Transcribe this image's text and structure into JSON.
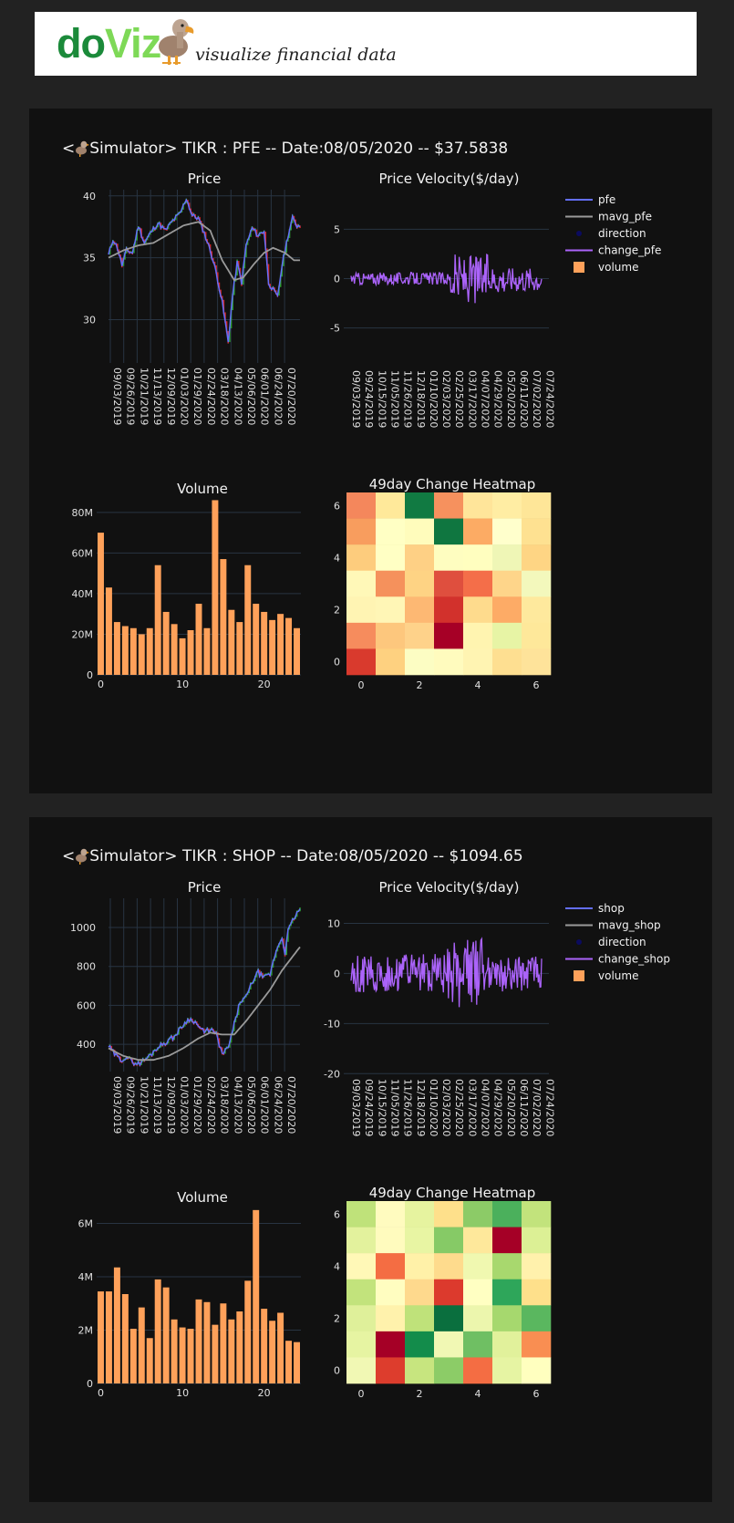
{
  "header": {
    "logo_do": "do",
    "logo_viz": "Viz",
    "tagline": "visualize financial data"
  },
  "colors": {
    "price": "#636efa",
    "mavg": "#9a9a9a",
    "change": "#ab63fa",
    "volume": "#ffa15a",
    "up": "#2ca02c",
    "down": "#d62728",
    "bg": "#111111",
    "grid": "#283442"
  },
  "panels": [
    {
      "title_prefix": "<",
      "title_text": "Simulator> TIKR : PFE -- Date:08/05/2020 -- $37.5838",
      "legend": [
        "pfe",
        "mavg_pfe",
        "direction",
        "change_pfe",
        "volume"
      ],
      "chart_data": [
        {
          "type": "line",
          "title": "Price",
          "series": [
            {
              "name": "pfe"
            },
            {
              "name": "mavg_pfe"
            }
          ],
          "x_ticks": [
            "09/03/2019",
            "09/26/2019",
            "10/21/2019",
            "11/13/2019",
            "12/09/2019",
            "01/03/2020",
            "01/29/2020",
            "02/24/2020",
            "03/18/2020",
            "04/13/2020",
            "05/06/2020",
            "06/01/2020",
            "06/24/2020",
            "07/20/2020"
          ],
          "y_ticks": [
            30,
            35,
            40
          ],
          "ylim": [
            26.5,
            40.5
          ],
          "price_keys": [
            [
              0,
              35.2
            ],
            [
              3,
              36.5
            ],
            [
              6,
              35.8
            ],
            [
              9,
              34.4
            ],
            [
              12,
              35.6
            ],
            [
              16,
              35.4
            ],
            [
              20,
              37.6
            ],
            [
              24,
              36.2
            ],
            [
              28,
              37.0
            ],
            [
              33,
              37.8
            ],
            [
              38,
              37.2
            ],
            [
              43,
              38.0
            ],
            [
              48,
              38.6
            ],
            [
              52,
              39.8
            ],
            [
              56,
              38.4
            ],
            [
              60,
              38.2
            ],
            [
              64,
              37.0
            ],
            [
              68,
              35.6
            ],
            [
              72,
              33.8
            ],
            [
              76,
              31.4
            ],
            [
              80,
              28.2
            ],
            [
              83,
              32.0
            ],
            [
              86,
              34.6
            ],
            [
              89,
              33.0
            ],
            [
              92,
              36.0
            ],
            [
              96,
              37.4
            ],
            [
              100,
              36.8
            ],
            [
              104,
              37.2
            ],
            [
              107,
              33.0
            ],
            [
              110,
              32.4
            ],
            [
              113,
              31.8
            ],
            [
              116,
              34.4
            ],
            [
              120,
              36.8
            ],
            [
              123,
              38.2
            ],
            [
              126,
              37.6
            ]
          ],
          "mavg_keys": [
            [
              0,
              35.0
            ],
            [
              10,
              35.6
            ],
            [
              20,
              36.0
            ],
            [
              30,
              36.2
            ],
            [
              40,
              36.9
            ],
            [
              50,
              37.6
            ],
            [
              60,
              37.9
            ],
            [
              68,
              37.2
            ],
            [
              76,
              34.8
            ],
            [
              84,
              33.2
            ],
            [
              90,
              33.4
            ],
            [
              98,
              34.6
            ],
            [
              104,
              35.4
            ],
            [
              110,
              35.8
            ],
            [
              118,
              35.4
            ],
            [
              124,
              34.8
            ],
            [
              128,
              34.8
            ]
          ]
        },
        {
          "type": "line",
          "title": "Price Velocity($/day)",
          "series": [
            {
              "name": "change_pfe"
            }
          ],
          "x_ticks": [
            "09/03/2019",
            "09/24/2019",
            "10/15/2019",
            "11/05/2019",
            "11/26/2019",
            "12/18/2019",
            "01/10/2020",
            "02/03/2020",
            "02/25/2020",
            "03/17/2020",
            "04/07/2020",
            "04/29/2020",
            "05/20/2020",
            "06/11/2020",
            "07/02/2020",
            "07/24/2020"
          ],
          "y_ticks": [
            -5,
            0,
            5
          ],
          "ylim": [
            -9,
            9
          ]
        },
        {
          "type": "bar",
          "title": "Volume",
          "series": [
            {
              "name": "volume"
            }
          ],
          "values": [
            70,
            43,
            26,
            24,
            23,
            20,
            23,
            54,
            31,
            25,
            18,
            22,
            35,
            23,
            86,
            57,
            32,
            26,
            54,
            35,
            31,
            27,
            30,
            28,
            23
          ],
          "y_ticks": [
            "0",
            "20M",
            "40M",
            "60M",
            "80M"
          ],
          "y_tick_values": [
            0,
            20,
            40,
            60,
            80
          ],
          "ylim": [
            0,
            88
          ],
          "x_ticks": [
            "0",
            "10",
            "20"
          ],
          "x_tick_values": [
            0,
            10,
            20
          ]
        },
        {
          "type": "heatmap",
          "title": "49day Change Heatmap",
          "x_ticks": [
            "0",
            "2",
            "4",
            "6"
          ],
          "y_ticks": [
            "0",
            "2",
            "4",
            "6"
          ],
          "rows_top_to_bottom": [
            [
              "#f4875c",
              "#ffe99a",
              "#117a42",
              "#f6915e",
              "#ffe59a",
              "#ffeda3",
              "#fee698"
            ],
            [
              "#f89d5e",
              "#ffffc4",
              "#fffcbc",
              "#0f7640",
              "#fcab64",
              "#ffffcc",
              "#fee191"
            ],
            [
              "#fdcc7d",
              "#ffffc4",
              "#fed085",
              "#fefdc0",
              "#fffebf",
              "#eff6b6",
              "#fed584"
            ],
            [
              "#fff8b8",
              "#f5915c",
              "#fed384",
              "#df4f3e",
              "#f46e49",
              "#fed58a",
              "#f3f8bc"
            ],
            [
              "#fff4b3",
              "#fff6b6",
              "#fdb873",
              "#d2312c",
              "#fedb8d",
              "#fdab66",
              "#fee99d"
            ],
            [
              "#f68c5d",
              "#fdc77d",
              "#fed28a",
              "#a60026",
              "#fff4b0",
              "#e7f4a5",
              "#fee89a"
            ],
            [
              "#d93a2d",
              "#fed180",
              "#fcfdc3",
              "#fffbbe",
              "#fff4b2",
              "#fedf91",
              "#fee39a"
            ]
          ]
        }
      ]
    },
    {
      "title_prefix": "<",
      "title_text": "Simulator> TIKR : SHOP -- Date:08/05/2020 -- $1094.65",
      "legend": [
        "shop",
        "mavg_shop",
        "direction",
        "change_shop",
        "volume"
      ],
      "chart_data": [
        {
          "type": "line",
          "title": "Price",
          "series": [
            {
              "name": "shop"
            },
            {
              "name": "mavg_shop"
            }
          ],
          "x_ticks": [
            "09/03/2019",
            "09/26/2019",
            "10/21/2019",
            "11/13/2019",
            "12/09/2019",
            "01/03/2020",
            "01/29/2020",
            "02/24/2020",
            "03/18/2020",
            "04/13/2020",
            "05/06/2020",
            "06/01/2020",
            "06/24/2020",
            "07/20/2020"
          ],
          "y_ticks": [
            400,
            600,
            800,
            1000
          ],
          "ylim": [
            260,
            1150
          ],
          "price_keys": [
            [
              0,
              390
            ],
            [
              4,
              350
            ],
            [
              8,
              320
            ],
            [
              12,
              335
            ],
            [
              16,
              310
            ],
            [
              20,
              300
            ],
            [
              24,
              320
            ],
            [
              28,
              345
            ],
            [
              32,
              380
            ],
            [
              36,
              400
            ],
            [
              40,
              420
            ],
            [
              44,
              440
            ],
            [
              48,
              480
            ],
            [
              52,
              520
            ],
            [
              56,
              530
            ],
            [
              60,
              495
            ],
            [
              64,
              460
            ],
            [
              68,
              480
            ],
            [
              72,
              450
            ],
            [
              76,
              350
            ],
            [
              80,
              380
            ],
            [
              84,
              500
            ],
            [
              88,
              620
            ],
            [
              92,
              640
            ],
            [
              96,
              720
            ],
            [
              100,
              770
            ],
            [
              104,
              740
            ],
            [
              108,
              760
            ],
            [
              112,
              880
            ],
            [
              116,
              950
            ],
            [
              118,
              870
            ],
            [
              120,
              980
            ],
            [
              124,
              1050
            ],
            [
              128,
              1095
            ]
          ],
          "mavg_keys": [
            [
              0,
              380
            ],
            [
              10,
              340
            ],
            [
              20,
              320
            ],
            [
              30,
              320
            ],
            [
              40,
              340
            ],
            [
              50,
              380
            ],
            [
              60,
              430
            ],
            [
              68,
              460
            ],
            [
              76,
              450
            ],
            [
              84,
              450
            ],
            [
              92,
              520
            ],
            [
              100,
              600
            ],
            [
              108,
              680
            ],
            [
              116,
              780
            ],
            [
              122,
              840
            ],
            [
              128,
              900
            ]
          ]
        },
        {
          "type": "line",
          "title": "Price Velocity($/day)",
          "series": [
            {
              "name": "change_shop"
            }
          ],
          "x_ticks": [
            "09/03/2019",
            "09/24/2019",
            "10/15/2019",
            "11/05/2019",
            "11/26/2019",
            "12/18/2019",
            "01/10/2020",
            "02/03/2020",
            "02/25/2020",
            "03/17/2020",
            "04/07/2020",
            "04/29/2020",
            "05/20/2020",
            "06/11/2020",
            "07/02/2020",
            "07/24/2020"
          ],
          "y_ticks": [
            -20,
            -10,
            0,
            10
          ],
          "ylim": [
            -20.5,
            15
          ]
        },
        {
          "type": "bar",
          "title": "Volume",
          "series": [
            {
              "name": "volume"
            }
          ],
          "values": [
            3.45,
            3.45,
            4.35,
            3.35,
            2.05,
            2.85,
            1.7,
            3.9,
            3.6,
            2.4,
            2.1,
            2.05,
            3.15,
            3.05,
            2.2,
            3.0,
            2.4,
            2.7,
            3.85,
            6.5,
            2.8,
            2.35,
            2.65,
            1.6,
            1.55
          ],
          "y_ticks": [
            "0",
            "2M",
            "4M",
            "6M"
          ],
          "y_tick_values": [
            0,
            2,
            4,
            6
          ],
          "ylim": [
            0,
            6.7
          ],
          "x_ticks": [
            "0",
            "10",
            "20"
          ],
          "x_tick_values": [
            0,
            10,
            20
          ]
        },
        {
          "type": "heatmap",
          "title": "49day Change Heatmap",
          "x_ticks": [
            "0",
            "2",
            "4",
            "6"
          ],
          "y_ticks": [
            "0",
            "2",
            "4",
            "6"
          ],
          "rows_top_to_bottom": [
            [
              "#bfe27a",
              "#fffbbf",
              "#e6f39f",
              "#fee08b",
              "#8ccb67",
              "#4bb05c",
              "#c2e37c"
            ],
            [
              "#e3f29d",
              "#fffbbe",
              "#e8f5a3",
              "#86ca66",
              "#fee89b",
              "#a50026",
              "#dcf095"
            ],
            [
              "#fff8b7",
              "#f46d43",
              "#fff1a8",
              "#fedb8d",
              "#f0f8b0",
              "#a8d86e",
              "#fff1ac"
            ],
            [
              "#c2e37c",
              "#fffdc0",
              "#fed98d",
              "#dc3a2d",
              "#ffffc2",
              "#2ea65a",
              "#fee08b"
            ],
            [
              "#dff09a",
              "#fff2ac",
              "#bfe27a",
              "#0a6f3e",
              "#ecf6ad",
              "#a6d86e",
              "#5ab75f"
            ],
            [
              "#e6f4a2",
              "#a50026",
              "#138c4b",
              "#f1f8b4",
              "#6fbf63",
              "#e1f19b",
              "#f98e52"
            ],
            [
              "#f1f8b4",
              "#dd3d2d",
              "#c7e57f",
              "#8ccc67",
              "#f46d43",
              "#e6f4a3",
              "#ffffbf"
            ]
          ]
        }
      ]
    }
  ]
}
